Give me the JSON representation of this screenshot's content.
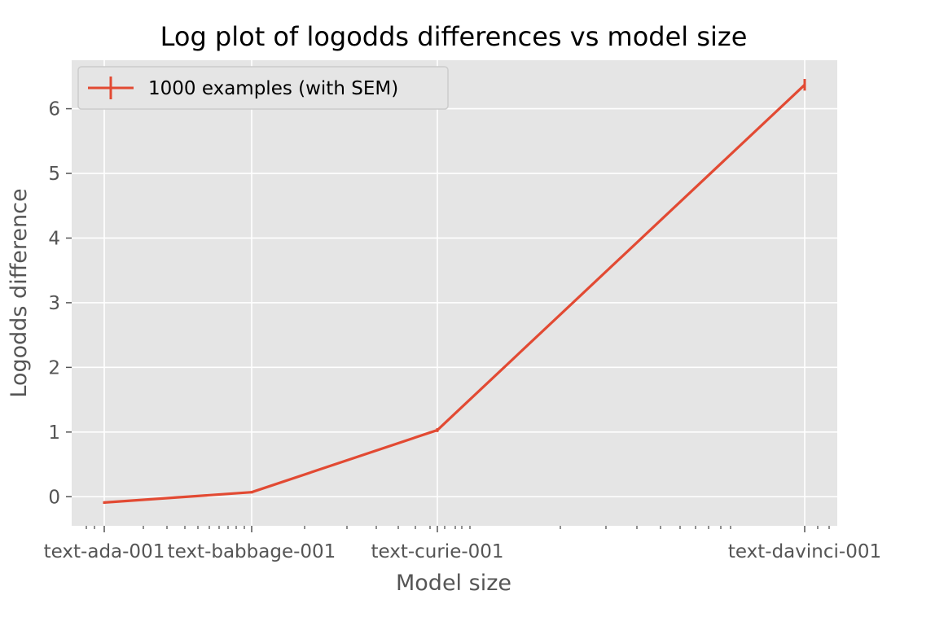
{
  "chart_data": {
    "type": "line",
    "title": "Log plot of logodds differences vs model size",
    "xlabel": "Model size",
    "ylabel": "Logodds difference",
    "x_scale": "log",
    "categories": [
      "text-ada-001",
      "text-babbage-001",
      "text-curie-001",
      "text-davinci-001"
    ],
    "ylim": [
      -0.45,
      6.75
    ],
    "yticks": [
      0,
      1,
      2,
      3,
      4,
      5,
      6
    ],
    "grid": true,
    "legend_position": "top-left",
    "series": [
      {
        "name": "1000 examples (with SEM)",
        "color": "#e24a33",
        "values": [
          -0.09,
          0.07,
          1.03,
          6.37
        ],
        "sem": [
          0.02,
          0.02,
          0.03,
          0.09
        ]
      }
    ]
  }
}
